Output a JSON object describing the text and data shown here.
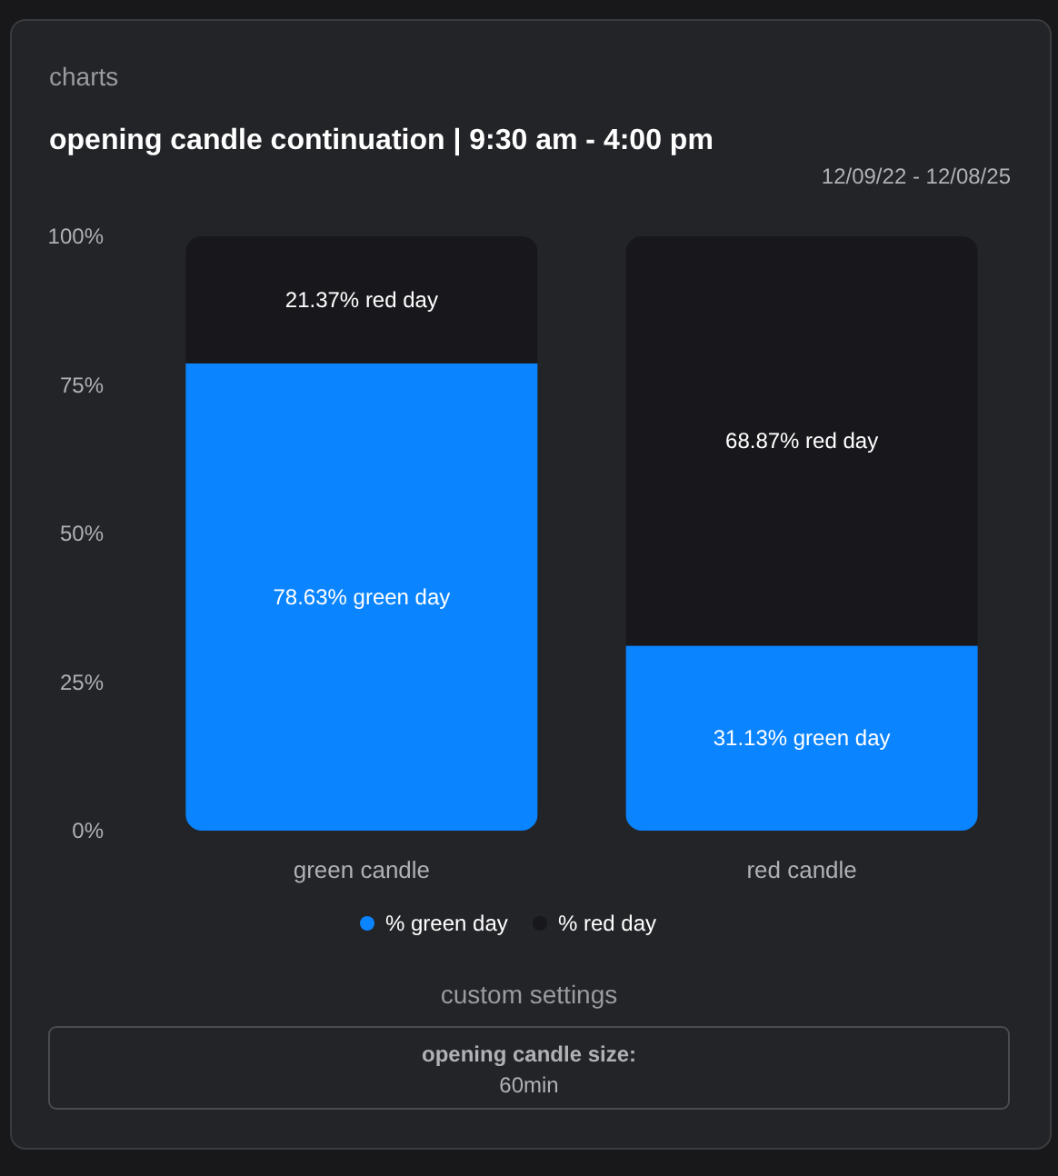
{
  "chart_data": {
    "type": "bar",
    "stacked": true,
    "title": "opening candle continuation | 9:30 am - 4:00 pm",
    "subtitle": "12/09/22 - 12/08/25",
    "categories": [
      "green candle",
      "red candle"
    ],
    "series": [
      {
        "name": "% green day",
        "color": "#0a84ff",
        "values": [
          78.63,
          31.13
        ],
        "value_labels": [
          "78.63% green day",
          "31.13% green day"
        ]
      },
      {
        "name": "% red day",
        "color": "#18181c",
        "values": [
          21.37,
          68.87
        ],
        "value_labels": [
          "21.37% red day",
          "68.87% red day"
        ]
      }
    ],
    "ylim": [
      0,
      100
    ],
    "yticks": [
      {
        "value": 0,
        "label": "0%"
      },
      {
        "value": 25,
        "label": "25%"
      },
      {
        "value": 50,
        "label": "50%"
      },
      {
        "value": 75,
        "label": "75%"
      },
      {
        "value": 100,
        "label": "100%"
      }
    ],
    "legend": "bottom",
    "annotations": [
      "charts",
      "custom settings",
      "opening candle size:",
      "60min"
    ]
  }
}
